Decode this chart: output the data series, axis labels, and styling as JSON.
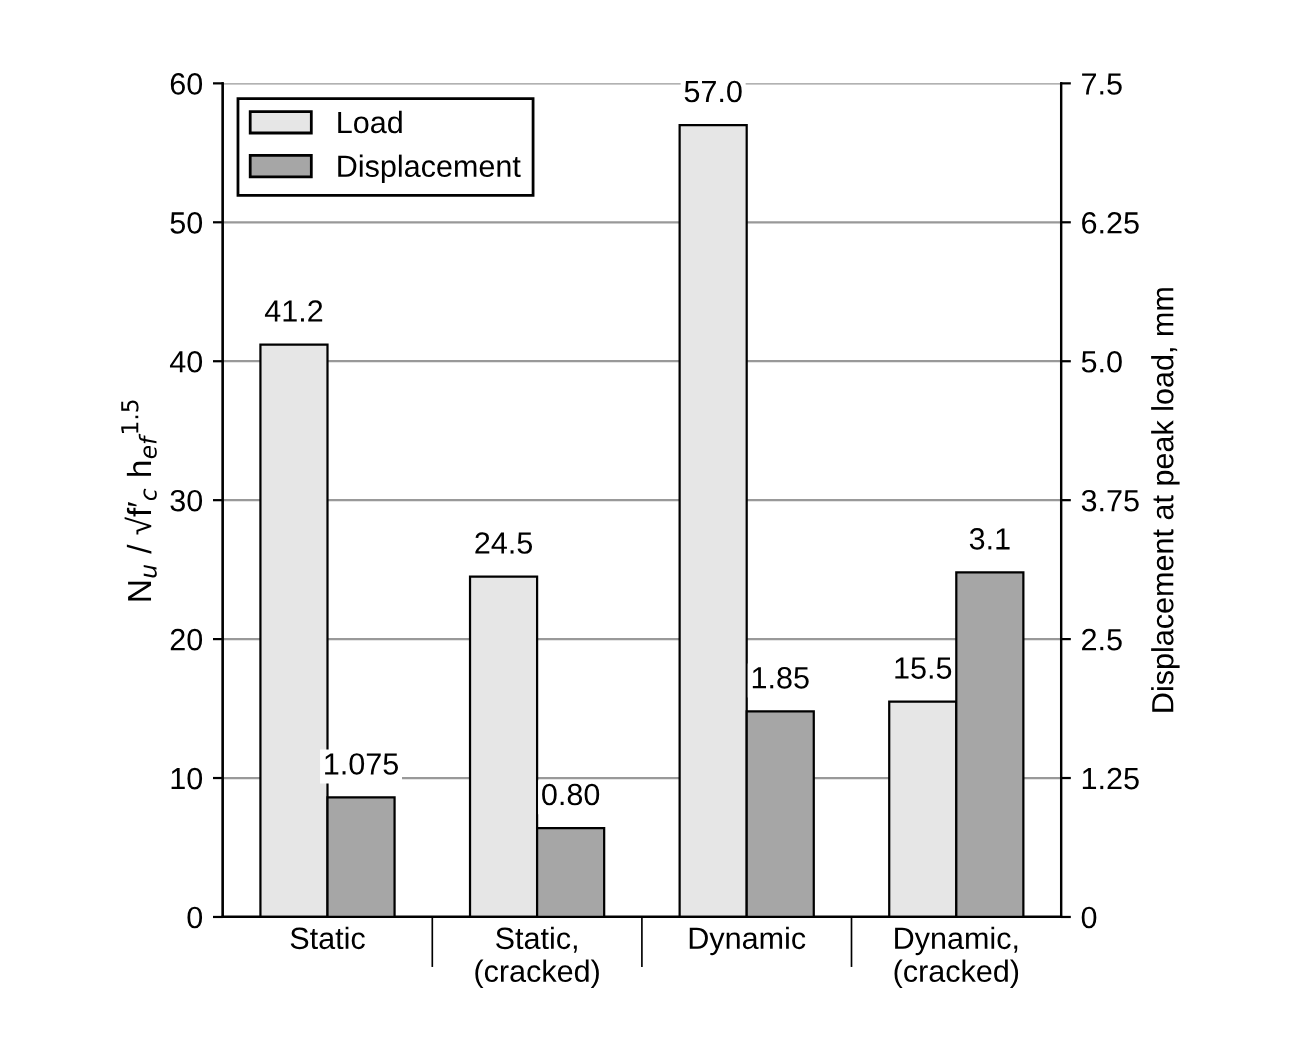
{
  "chart_data": {
    "type": "bar",
    "categories": [
      "Static",
      "Static,\n(cracked)",
      "Dynamic",
      "Dynamic,\n(cracked)"
    ],
    "ylabel": "N$_{u}$ / √f′$_{c}$ h$_{ef}$$^{1.5}$",
    "y2label": "Displacement at peak load, mm",
    "series": [
      {
        "name": "Load",
        "color": "#e6e6e6",
        "values": [
          41.2,
          24.5,
          57.0,
          15.5
        ],
        "value_labels": [
          "41.2",
          "24.5",
          "57.0",
          "15.5"
        ]
      },
      {
        "name": "Displacement",
        "color": "#a6a6a6",
        "axis": "y2",
        "values": [
          1.075,
          0.8,
          1.85,
          3.1
        ],
        "value_labels": [
          "1.075",
          "0.80",
          "1.85",
          "3.1"
        ]
      }
    ],
    "ylim": [
      0,
      60
    ],
    "yticks": [
      0,
      10,
      20,
      30,
      40,
      50,
      60
    ],
    "y2lim": [
      0,
      7.5
    ],
    "y2ticks": [
      0,
      1.25,
      2.5,
      3.75,
      {
        "value": 5,
        "label": "5.0"
      },
      6.25,
      7.5
    ],
    "grid": "y",
    "legend": "top left"
  }
}
